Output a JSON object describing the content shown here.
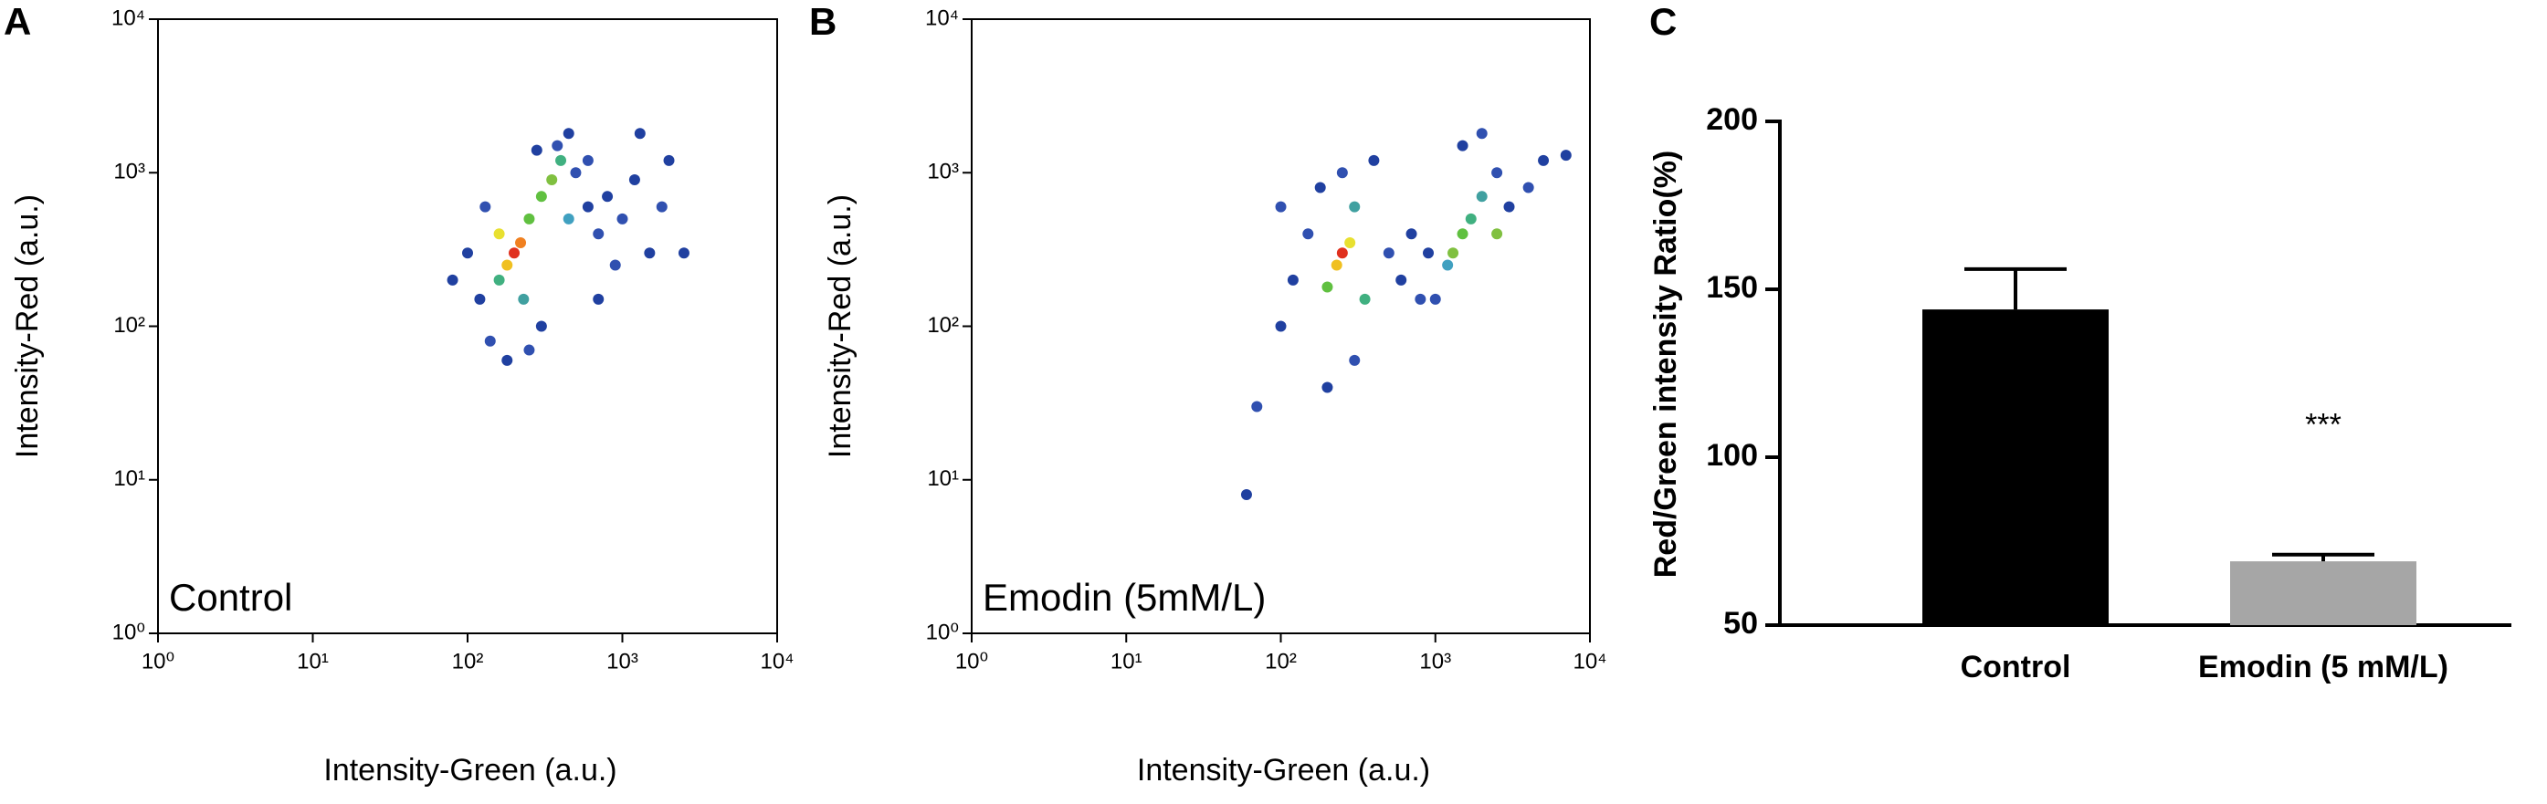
{
  "chart_data": [
    {
      "type": "scatter",
      "panel": "A",
      "annotation": "Control",
      "x_label": "Intensity-Green (a.u.)",
      "y_label": "Intensity-Red (a.u.)",
      "log_x": true,
      "log_y": true,
      "xlim": [
        1,
        10000
      ],
      "ylim": [
        1,
        10000
      ],
      "xticks": [
        {
          "value": 1,
          "label": "10⁰"
        },
        {
          "value": 10,
          "label": "10¹"
        },
        {
          "value": 100,
          "label": "10²"
        },
        {
          "value": 1000,
          "label": "10³"
        },
        {
          "value": 10000,
          "label": "10⁴"
        }
      ],
      "yticks": [
        {
          "value": 1,
          "label": "10⁰"
        },
        {
          "value": 10,
          "label": "10¹"
        },
        {
          "value": 100,
          "label": "10²"
        },
        {
          "value": 1000,
          "label": "10³"
        },
        {
          "value": 10000,
          "label": "10⁴"
        }
      ],
      "x": [
        200,
        220,
        180,
        160,
        250,
        300,
        160,
        350,
        400,
        230,
        120,
        100,
        140,
        180,
        250,
        300,
        450,
        380,
        280,
        130,
        80,
        500,
        450,
        600,
        700,
        800,
        1000,
        1200,
        1500,
        900,
        2000,
        1800,
        2500,
        700,
        600,
        1300
      ],
      "y": [
        300,
        350,
        250,
        400,
        500,
        700,
        200,
        900,
        1200,
        150,
        150,
        300,
        80,
        60,
        70,
        100,
        1800,
        1500,
        1400,
        600,
        200,
        1000,
        500,
        600,
        400,
        700,
        500,
        900,
        300,
        250,
        1200,
        600,
        300,
        150,
        1200,
        1800
      ],
      "colors": [
        "#e0301e",
        "#f08020",
        "#f0c020",
        "#e8e030",
        "#60c040",
        "#60c040",
        "#40b080",
        "#80c040",
        "#40b080",
        "#40a0a0",
        "#2040a0",
        "#2040a0",
        "#3050b0",
        "#2040a0",
        "#3050b0",
        "#2040a0",
        "#2040a0",
        "#3050b0",
        "#2040a0",
        "#3050b0",
        "#2040a0",
        "#3050b0",
        "#40a0c0",
        "#2040a0",
        "#3050b0",
        "#2040a0",
        "#3050b0",
        "#2040a0",
        "#2040a0",
        "#3050b0",
        "#2040a0",
        "#3050b0",
        "#2040a0",
        "#2040a0",
        "#3050b0",
        "#2040a0"
      ]
    },
    {
      "type": "scatter",
      "panel": "B",
      "annotation": "Emodin (5mM/L)",
      "x_label": "Intensity-Green (a.u.)",
      "y_label": "Intensity-Red (a.u.)",
      "log_x": true,
      "log_y": true,
      "xlim": [
        1,
        10000
      ],
      "ylim": [
        1,
        10000
      ],
      "xticks": [
        {
          "value": 1,
          "label": "10⁰"
        },
        {
          "value": 10,
          "label": "10¹"
        },
        {
          "value": 100,
          "label": "10²"
        },
        {
          "value": 1000,
          "label": "10³"
        },
        {
          "value": 10000,
          "label": "10⁴"
        }
      ],
      "yticks": [
        {
          "value": 1,
          "label": "10⁰"
        },
        {
          "value": 10,
          "label": "10¹"
        },
        {
          "value": 100,
          "label": "10²"
        },
        {
          "value": 1000,
          "label": "10³"
        },
        {
          "value": 10000,
          "label": "10⁴"
        }
      ],
      "x": [
        250,
        230,
        280,
        1500,
        1700,
        1300,
        300,
        200,
        350,
        1200,
        2000,
        150,
        120,
        100,
        180,
        250,
        400,
        500,
        600,
        800,
        900,
        1000,
        700,
        2500,
        3000,
        4000,
        5000,
        7000,
        2000,
        1500,
        300,
        200,
        100,
        70,
        60,
        2500
      ],
      "y": [
        300,
        250,
        350,
        400,
        500,
        300,
        600,
        180,
        150,
        250,
        700,
        400,
        200,
        600,
        800,
        1000,
        1200,
        300,
        200,
        150,
        300,
        150,
        400,
        1000,
        600,
        800,
        1200,
        1300,
        1800,
        1500,
        60,
        40,
        100,
        30,
        8,
        400
      ],
      "colors": [
        "#e0301e",
        "#f0c020",
        "#e8e030",
        "#60c040",
        "#40b080",
        "#80c040",
        "#40a0a0",
        "#60c040",
        "#40b080",
        "#40a0c0",
        "#40a0a0",
        "#3050b0",
        "#2040a0",
        "#3050b0",
        "#2040a0",
        "#3050b0",
        "#2040a0",
        "#3050b0",
        "#2040a0",
        "#3050b0",
        "#2040a0",
        "#3050b0",
        "#2040a0",
        "#3050b0",
        "#2040a0",
        "#3050b0",
        "#2040a0",
        "#2040a0",
        "#3050b0",
        "#2040a0",
        "#3050b0",
        "#2040a0",
        "#2040a0",
        "#3050b0",
        "#2040a0",
        "#80c040"
      ]
    },
    {
      "type": "bar",
      "panel": "C",
      "y_label": "Red/Green intensity Ratio(%)",
      "categories": [
        "Control",
        "Emodin (5 mM/L)"
      ],
      "values": [
        144,
        69
      ],
      "errors": [
        12,
        2
      ],
      "colors": [
        "#000000",
        "#a6a6a6"
      ],
      "annotation": "***",
      "annotation_category": 1,
      "ylim": [
        50,
        200
      ],
      "yticks": [
        50,
        100,
        150,
        200
      ]
    }
  ]
}
